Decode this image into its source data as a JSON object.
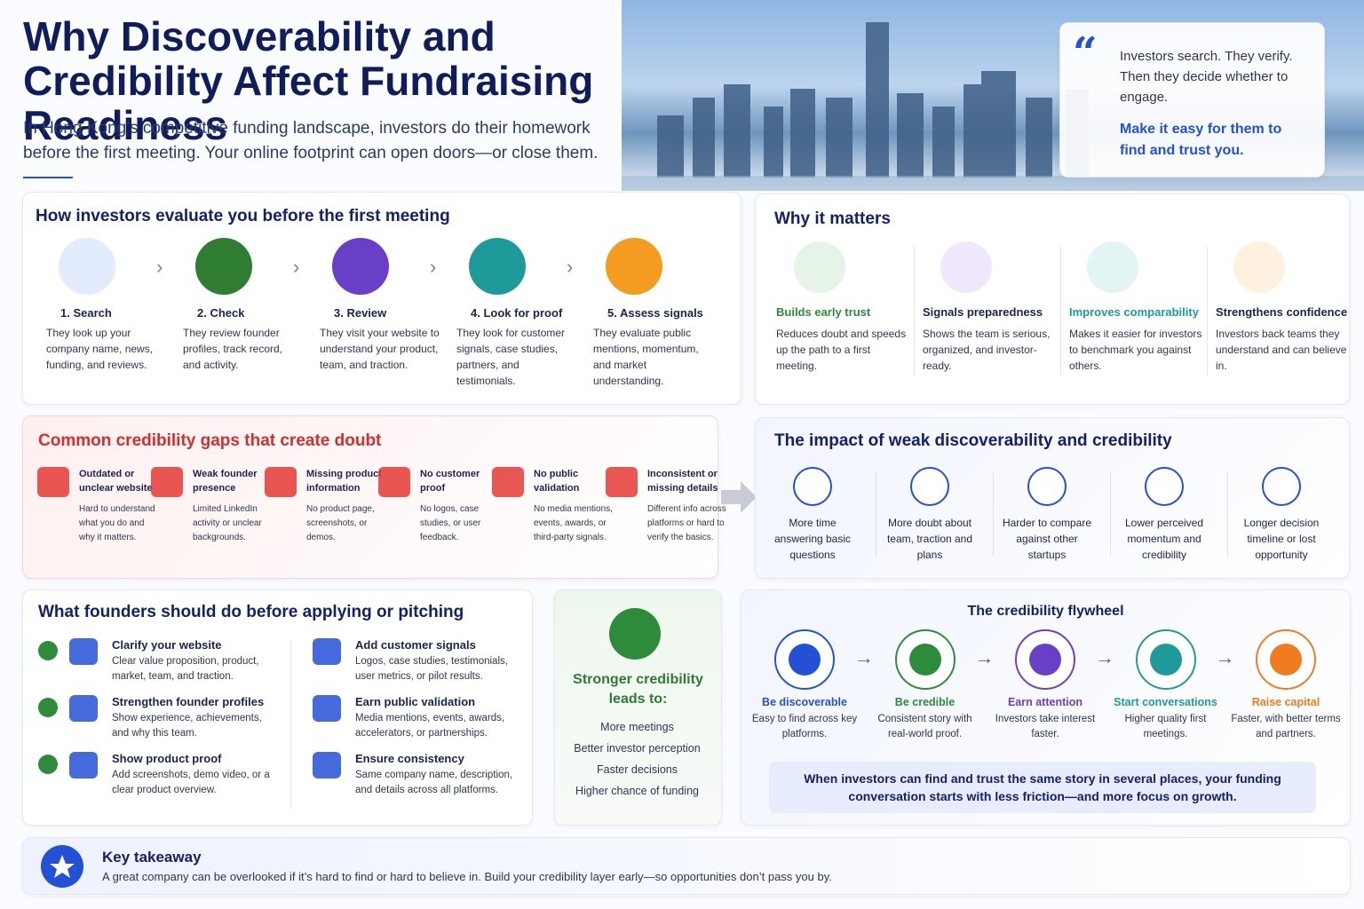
{
  "header": {
    "title": "Why Discoverability and Credibility Affect Fundraising Readiness",
    "subtitle": "In Hong Kong’s competitive funding landscape, investors do their homework before the first meeting. Your online footprint can open doors—or close them."
  },
  "quote": {
    "text": "Investors search. They verify. Then they decide whether to engage.",
    "emphasis": "Make it easy for them to find and trust you."
  },
  "evaluate": {
    "title": "How investors evaluate you before the first meeting",
    "steps": [
      {
        "title": "1. Search",
        "text": "They look up your company name, news, funding, and reviews."
      },
      {
        "title": "2. Check",
        "text": "They review founder profiles, track record, and activity."
      },
      {
        "title": "3. Review",
        "text": "They visit your website to understand your product, team, and traction."
      },
      {
        "title": "4. Look for proof",
        "text": "They look for customer signals, case studies, partners, and testimonials."
      },
      {
        "title": "5. Assess signals",
        "text": "They evaluate public mentions, momentum, and market understanding."
      }
    ]
  },
  "why": {
    "title": "Why it matters",
    "items": [
      {
        "title": "Builds early trust",
        "text": "Reduces doubt and speeds up the path to a first meeting."
      },
      {
        "title": "Signals preparedness",
        "text": "Shows the team is serious, organized, and investor-ready."
      },
      {
        "title": "Improves comparability",
        "text": "Makes it easier for investors to benchmark you against others."
      },
      {
        "title": "Strengthens confidence",
        "text": "Investors back teams they understand and can believe in."
      }
    ]
  },
  "gaps": {
    "title": "Common credibility gaps that create doubt",
    "items": [
      {
        "title": "Outdated or unclear website",
        "text": "Hard to understand what you do and why it matters."
      },
      {
        "title": "Weak founder presence",
        "text": "Limited LinkedIn activity or unclear backgrounds."
      },
      {
        "title": "Missing product information",
        "text": "No product page, screenshots, or demos."
      },
      {
        "title": "No customer proof",
        "text": "No logos, case studies, or user feedback."
      },
      {
        "title": "No public validation",
        "text": "No media mentions, events, awards, or third-party signals."
      },
      {
        "title": "Inconsistent or missing details",
        "text": "Different info across platforms or hard to verify the basics."
      }
    ]
  },
  "impact": {
    "title": "The impact of weak discoverability and credibility",
    "items": [
      "More time answering basic questions",
      "More doubt about team, traction and plans",
      "Harder to compare against other startups",
      "Lower perceived momentum and credibility",
      "Longer decision timeline or lost opportunity"
    ]
  },
  "actions": {
    "title": "What founders should do before applying or pitching",
    "items": [
      {
        "title": "Clarify your website",
        "text": "Clear value proposition, product, market, team, and traction."
      },
      {
        "title": "Strengthen founder profiles",
        "text": "Show experience, achievements, and why this team."
      },
      {
        "title": "Show product proof",
        "text": "Add screenshots, demo video, or a clear product overview."
      },
      {
        "title": "Add customer signals",
        "text": "Logos, case studies, testimonials, user metrics, or pilot results."
      },
      {
        "title": "Earn public validation",
        "text": "Media mentions, events, awards, accelerators, or partnerships."
      },
      {
        "title": "Ensure consistency",
        "text": "Same company name, description, and details across all platforms."
      }
    ]
  },
  "outcomes": {
    "title": "Stronger credibility leads to:",
    "items": [
      "More meetings",
      "Better investor perception",
      "Faster decisions",
      "Higher chance of funding"
    ]
  },
  "flywheel": {
    "title": "The credibility flywheel",
    "steps": [
      {
        "title": "Be discoverable",
        "text": "Easy to find across key platforms."
      },
      {
        "title": "Be credible",
        "text": "Consistent story with real-world proof."
      },
      {
        "title": "Earn attention",
        "text": "Investors take interest faster."
      },
      {
        "title": "Start conversations",
        "text": "Higher quality first meetings."
      },
      {
        "title": "Raise capital",
        "text": "Faster, with better terms and partners."
      }
    ],
    "note": "When investors can find and trust the same story in several places, your funding conversation starts with less friction—and more focus on growth."
  },
  "takeaway": {
    "title": "Key takeaway",
    "text": "A great company can be overlooked if it’s hard to find or hard to believe in. Build your credibility layer early—so opportunities don’t pass you by."
  }
}
